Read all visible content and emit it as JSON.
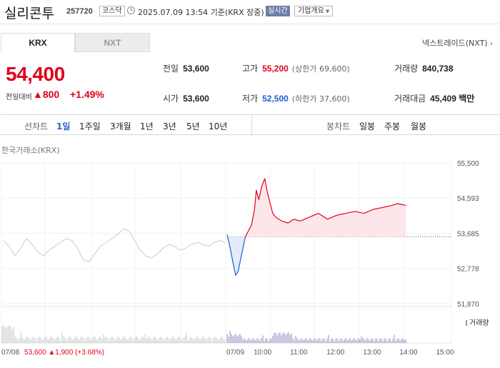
{
  "header": {
    "stock_name": "실리콘투",
    "stock_code": "257720",
    "market_badge": "코스닥",
    "timestamp": "2025.07.09 13:54 기준(KRX 장중)",
    "realtime_badge": "실시간",
    "company_button": "기업개요"
  },
  "tabs": {
    "krx": "KRX",
    "nxt": "NXT",
    "active": "KRX"
  },
  "trade_link": "넥스트레이드(NXT)",
  "price": {
    "current": "54,400",
    "change_label": "전일대비",
    "change_amount": "▲800",
    "change_percent": "+1.49%",
    "color": "#e0001b"
  },
  "info": {
    "prev_close_label": "전일",
    "prev_close": "53,600",
    "high_label": "고가",
    "high": "55,200",
    "upper_limit": "(상한가 69,600)",
    "volume_label": "거래량",
    "volume": "840,738",
    "open_label": "시가",
    "open": "53,600",
    "low_label": "저가",
    "low": "52,500",
    "lower_limit": "(하한가 37,600)",
    "value_label": "거래대금",
    "value": "45,409 백만"
  },
  "toolbar": {
    "line_label": "선차트",
    "periods": [
      "1일",
      "1주일",
      "3개월",
      "1년",
      "3년",
      "5년",
      "10년"
    ],
    "active_period": "1일",
    "candle_label": "봉차트",
    "candles": [
      "일봉",
      "주봉",
      "월봉"
    ]
  },
  "chart_title": "한국거래소(KRX)",
  "volume_legend": "거래량",
  "chart_data": {
    "type": "line",
    "title": "",
    "y_ticks": [
      "55,500",
      "54,593",
      "53,685",
      "52,778",
      "51,870"
    ],
    "ylim": [
      51870,
      55500
    ],
    "baseline": 53600,
    "x_labels": [
      "07/08",
      "07/09",
      "10:00",
      "11:00",
      "12:00",
      "13:00",
      "14:00",
      "15:00"
    ],
    "prev_day_series": [
      53500,
      53350,
      53100,
      53300,
      53550,
      53400,
      53200,
      53100,
      53250,
      53350,
      53450,
      53550,
      53500,
      53300,
      53000,
      52950,
      53150,
      53350,
      53450,
      53550,
      53650,
      53800,
      53750,
      53500,
      53250,
      53100,
      53050,
      53150,
      53300,
      53400,
      53350,
      53250,
      53300,
      53400,
      53450,
      53400,
      53350,
      53450,
      53500,
      53450
    ],
    "today_series": [
      [
        "09:00",
        53650
      ],
      [
        "09:05",
        53300
      ],
      [
        "09:10",
        52900
      ],
      [
        "09:14",
        52600
      ],
      [
        "09:18",
        52700
      ],
      [
        "09:22",
        53000
      ],
      [
        "09:26",
        53300
      ],
      [
        "09:30",
        53600
      ],
      [
        "09:35",
        53750
      ],
      [
        "09:40",
        53900
      ],
      [
        "09:45",
        54300
      ],
      [
        "09:48",
        54800
      ],
      [
        "09:52",
        54550
      ],
      [
        "09:57",
        54900
      ],
      [
        "10:02",
        55100
      ],
      [
        "10:06",
        54750
      ],
      [
        "10:10",
        54500
      ],
      [
        "10:15",
        54200
      ],
      [
        "10:20",
        54100
      ],
      [
        "10:30",
        54000
      ],
      [
        "10:40",
        53950
      ],
      [
        "10:50",
        54050
      ],
      [
        "11:00",
        54000
      ],
      [
        "11:15",
        54100
      ],
      [
        "11:30",
        54200
      ],
      [
        "11:45",
        54050
      ],
      [
        "12:00",
        54150
      ],
      [
        "12:15",
        54200
      ],
      [
        "12:30",
        54250
      ],
      [
        "12:45",
        54200
      ],
      [
        "13:00",
        54300
      ],
      [
        "13:15",
        54350
      ],
      [
        "13:30",
        54400
      ],
      [
        "13:40",
        54450
      ],
      [
        "13:50",
        54420
      ],
      [
        "13:54",
        54400
      ]
    ],
    "prev_close_summary": {
      "value": "53,600",
      "change": "▲1,900",
      "percent": "(+3.68%)"
    },
    "colors": {
      "up": "#e0001b",
      "down": "#1a5fd1",
      "prev": "#cccccc",
      "volume": "#9d8cc6"
    }
  }
}
